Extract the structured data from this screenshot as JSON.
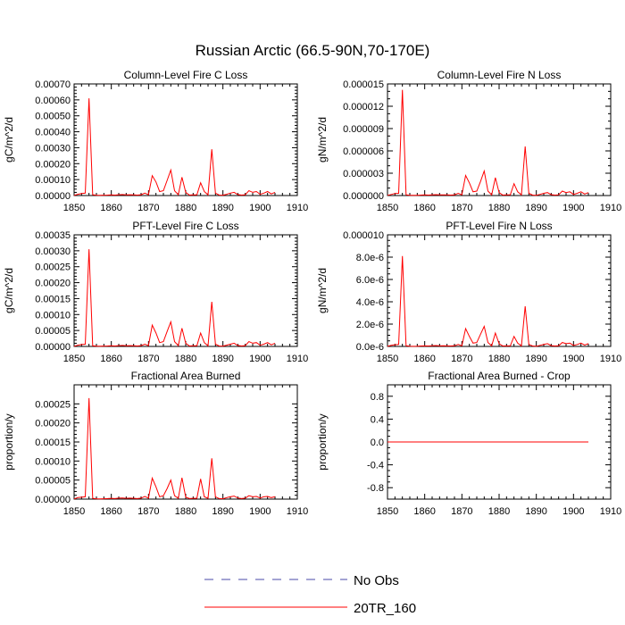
{
  "figure": {
    "title": "Russian Arctic (66.5-90N,70-170E)"
  },
  "colors": {
    "obs": "#4a4aa8",
    "model": "#ff0000",
    "axis": "#000000"
  },
  "legend": {
    "position": "bottom-center",
    "entries": [
      {
        "label": "No Obs",
        "style": "dashed",
        "color": "#4a4aa8"
      },
      {
        "label": "20TR_160",
        "style": "solid",
        "color": "#ff0000"
      }
    ]
  },
  "chart_data": [
    {
      "type": "line",
      "title": "Column-Level Fire C Loss",
      "ylabel": "gC/m^2/d",
      "xlabel": "",
      "xlim": [
        1850,
        1910
      ],
      "xticks": [
        1850,
        1860,
        1870,
        1880,
        1890,
        1900,
        1910
      ],
      "xtick_labels": [
        "1850",
        "1860",
        "1870",
        "1880",
        "1890",
        "1900",
        "1910"
      ],
      "ylim": [
        0,
        0.0007
      ],
      "yticks": [
        0,
        0.0001,
        0.0002,
        0.0003,
        0.0004,
        0.0005,
        0.0006,
        0.0007
      ],
      "ytick_labels": [
        "0.00000",
        "0.00010",
        "0.00020",
        "0.00030",
        "0.00040",
        "0.00050",
        "0.00060",
        "0.00070"
      ],
      "yminor": 5,
      "series": [
        {
          "name": "20TR_160",
          "x": [
            1850,
            1851,
            1852,
            1853,
            1854,
            1855,
            1856,
            1857,
            1858,
            1859,
            1860,
            1861,
            1862,
            1863,
            1864,
            1865,
            1866,
            1867,
            1868,
            1869,
            1870,
            1871,
            1872,
            1873,
            1874,
            1875,
            1876,
            1877,
            1878,
            1879,
            1880,
            1881,
            1882,
            1883,
            1884,
            1885,
            1886,
            1887,
            1888,
            1889,
            1890,
            1891,
            1892,
            1893,
            1894,
            1895,
            1896,
            1897,
            1898,
            1899,
            1900,
            1901,
            1902,
            1903,
            1904
          ],
          "values": [
            1e-06,
            8e-06,
            1.3e-05,
            1.5e-05,
            0.00061,
            5e-06,
            2e-06,
            1e-06,
            2e-06,
            3e-06,
            4e-06,
            3e-06,
            5e-06,
            6e-06,
            4e-06,
            5e-06,
            4e-06,
            3e-06,
            5e-06,
            1.5e-05,
            5e-06,
            0.000125,
            8.5e-05,
            2.5e-05,
            3e-05,
            9.5e-05,
            0.00016,
            3e-05,
            5e-06,
            0.000115,
            2e-05,
            3e-06,
            4e-06,
            4e-06,
            8e-05,
            2.5e-05,
            4e-06,
            0.00029,
            1.5e-05,
            3e-06,
            2e-06,
            8e-06,
            1.5e-05,
            2e-05,
            6e-06,
            3e-06,
            5e-06,
            3e-05,
            2e-05,
            2.5e-05,
            8e-06,
            1.5e-05,
            2.5e-05,
            1e-05,
            2e-05
          ]
        }
      ]
    },
    {
      "type": "line",
      "title": "Column-Level Fire N Loss",
      "ylabel": "gN/m^2/d",
      "xlabel": "",
      "xlim": [
        1850,
        1910
      ],
      "xticks": [
        1850,
        1860,
        1870,
        1880,
        1890,
        1900,
        1910
      ],
      "xtick_labels": [
        "1850",
        "1860",
        "1870",
        "1880",
        "1890",
        "1900",
        "1910"
      ],
      "ylim": [
        0,
        1.5e-05
      ],
      "yticks": [
        0,
        3e-06,
        6e-06,
        9e-06,
        1.2e-05,
        1.5e-05
      ],
      "ytick_labels": [
        "0.000000",
        "0.000003",
        "0.000006",
        "0.000009",
        "0.000012",
        "0.000015"
      ],
      "yminor": 3,
      "series": [
        {
          "name": "20TR_160",
          "x": [
            1850,
            1851,
            1852,
            1853,
            1854,
            1855,
            1856,
            1857,
            1858,
            1859,
            1860,
            1861,
            1862,
            1863,
            1864,
            1865,
            1866,
            1867,
            1868,
            1869,
            1870,
            1871,
            1872,
            1873,
            1874,
            1875,
            1876,
            1877,
            1878,
            1879,
            1880,
            1881,
            1882,
            1883,
            1884,
            1885,
            1886,
            1887,
            1888,
            1889,
            1890,
            1891,
            1892,
            1893,
            1894,
            1895,
            1896,
            1897,
            1898,
            1899,
            1900,
            1901,
            1902,
            1903,
            1904
          ],
          "values": [
            2e-08,
            1.5e-07,
            2.8e-07,
            3e-07,
            1.42e-05,
            1e-07,
            4e-08,
            2e-08,
            4e-08,
            6e-08,
            8e-08,
            6e-08,
            1e-07,
            1.2e-07,
            8e-08,
            1e-07,
            8e-08,
            6e-08,
            1e-07,
            3e-07,
            1e-07,
            2.7e-06,
            1.7e-06,
            5e-07,
            6e-07,
            1.9e-06,
            3.3e-06,
            6e-07,
            1e-07,
            2.4e-06,
            4e-07,
            6e-08,
            8e-08,
            8e-08,
            1.6e-06,
            5e-07,
            8e-08,
            6.6e-06,
            3e-07,
            6e-08,
            4e-08,
            1.6e-07,
            3e-07,
            4e-07,
            1.2e-07,
            6e-08,
            1e-07,
            6e-07,
            4e-07,
            5e-07,
            1.6e-07,
            3e-07,
            5e-07,
            2e-07,
            4e-07
          ]
        }
      ]
    },
    {
      "type": "line",
      "title": "PFT-Level Fire C Loss",
      "ylabel": "gC/m^2/d",
      "xlabel": "",
      "xlim": [
        1850,
        1910
      ],
      "xticks": [
        1850,
        1860,
        1870,
        1880,
        1890,
        1900,
        1910
      ],
      "xtick_labels": [
        "1850",
        "1860",
        "1870",
        "1880",
        "1890",
        "1900",
        "1910"
      ],
      "ylim": [
        0,
        0.00035
      ],
      "yticks": [
        0,
        5e-05,
        0.0001,
        0.00015,
        0.0002,
        0.00025,
        0.0003,
        0.00035
      ],
      "ytick_labels": [
        "0.00000",
        "0.00005",
        "0.00010",
        "0.00015",
        "0.00020",
        "0.00025",
        "0.00030",
        "0.00035"
      ],
      "yminor": 5,
      "series": [
        {
          "name": "20TR_160",
          "x": [
            1850,
            1851,
            1852,
            1853,
            1854,
            1855,
            1856,
            1857,
            1858,
            1859,
            1860,
            1861,
            1862,
            1863,
            1864,
            1865,
            1866,
            1867,
            1868,
            1869,
            1870,
            1871,
            1872,
            1873,
            1874,
            1875,
            1876,
            1877,
            1878,
            1879,
            1880,
            1881,
            1882,
            1883,
            1884,
            1885,
            1886,
            1887,
            1888,
            1889,
            1890,
            1891,
            1892,
            1893,
            1894,
            1895,
            1896,
            1897,
            1898,
            1899,
            1900,
            1901,
            1902,
            1903,
            1904
          ],
          "values": [
            5e-07,
            4e-06,
            6e-06,
            7e-06,
            0.000305,
            2e-06,
            1e-06,
            5e-07,
            1e-06,
            1.5e-06,
            2e-06,
            1.5e-06,
            2.5e-06,
            3e-06,
            2e-06,
            2.5e-06,
            2e-06,
            1.5e-06,
            2.5e-06,
            7e-06,
            2.5e-06,
            6.7e-05,
            4.2e-05,
            1.2e-05,
            1.5e-05,
            4.7e-05,
            7.7e-05,
            1.5e-05,
            2.5e-06,
            5.7e-05,
            1e-05,
            1.5e-06,
            2e-06,
            2e-06,
            4.2e-05,
            1.2e-05,
            2e-06,
            0.00014,
            7e-06,
            1.5e-06,
            1e-06,
            4e-06,
            7e-06,
            1e-05,
            3e-06,
            1.5e-06,
            2.5e-06,
            1.5e-05,
            1e-05,
            1.2e-05,
            4e-06,
            7e-06,
            1.2e-05,
            5e-06,
            1e-05
          ]
        }
      ]
    },
    {
      "type": "line",
      "title": "PFT-Level Fire N Loss",
      "ylabel": "gN/m^2/d",
      "xlabel": "",
      "xlim": [
        1850,
        1910
      ],
      "xticks": [
        1850,
        1860,
        1870,
        1880,
        1890,
        1900,
        1910
      ],
      "xtick_labels": [
        "1850",
        "1860",
        "1870",
        "1880",
        "1890",
        "1900",
        "1910"
      ],
      "ylim": [
        0,
        1e-05
      ],
      "yticks": [
        0,
        2e-06,
        4e-06,
        6e-06,
        8e-06,
        1e-05
      ],
      "ytick_labels": [
        "0.0e-6",
        "2.0e-6",
        "4.0e-6",
        "6.0e-6",
        "8.0e-6",
        "0.000010"
      ],
      "yminor": 4,
      "series": [
        {
          "name": "20TR_160",
          "x": [
            1850,
            1851,
            1852,
            1853,
            1854,
            1855,
            1856,
            1857,
            1858,
            1859,
            1860,
            1861,
            1862,
            1863,
            1864,
            1865,
            1866,
            1867,
            1868,
            1869,
            1870,
            1871,
            1872,
            1873,
            1874,
            1875,
            1876,
            1877,
            1878,
            1879,
            1880,
            1881,
            1882,
            1883,
            1884,
            1885,
            1886,
            1887,
            1888,
            1889,
            1890,
            1891,
            1892,
            1893,
            1894,
            1895,
            1896,
            1897,
            1898,
            1899,
            1900,
            1901,
            1902,
            1903,
            1904
          ],
          "values": [
            1e-08,
            1e-07,
            1.5e-07,
            1.8e-07,
            8.1e-06,
            6e-08,
            2e-08,
            1e-08,
            2e-08,
            4e-08,
            5e-08,
            4e-08,
            6e-08,
            8e-08,
            5e-08,
            6e-08,
            5e-08,
            4e-08,
            6e-08,
            1.8e-07,
            6e-08,
            1.6e-06,
            9e-07,
            3e-07,
            3.5e-07,
            1.1e-06,
            1.8e-06,
            3.5e-07,
            6e-08,
            1.2e-06,
            2.5e-07,
            4e-08,
            5e-08,
            5e-08,
            9e-07,
            3e-07,
            5e-08,
            3.6e-06,
            1.8e-07,
            4e-08,
            2e-08,
            1e-07,
            1.8e-07,
            2.5e-07,
            7e-08,
            4e-08,
            6e-08,
            3.5e-07,
            2.5e-07,
            3e-07,
            1e-07,
            1.8e-07,
            3e-07,
            1.2e-07,
            2.5e-07
          ]
        }
      ]
    },
    {
      "type": "line",
      "title": "Fractional Area Burned",
      "ylabel": "proportion/y",
      "xlabel": "",
      "xlim": [
        1850,
        1910
      ],
      "xticks": [
        1850,
        1860,
        1870,
        1880,
        1890,
        1900,
        1910
      ],
      "xtick_labels": [
        "1850",
        "1860",
        "1870",
        "1880",
        "1890",
        "1900",
        "1910"
      ],
      "ylim": [
        0,
        0.0003
      ],
      "yticks": [
        0,
        5e-05,
        0.0001,
        0.00015,
        0.0002,
        0.00025
      ],
      "ytick_labels": [
        "0.00000",
        "0.00005",
        "0.00010",
        "0.00015",
        "0.00020",
        "0.00025"
      ],
      "yminor": 5,
      "series": [
        {
          "name": "20TR_160",
          "x": [
            1850,
            1851,
            1852,
            1853,
            1854,
            1855,
            1856,
            1857,
            1858,
            1859,
            1860,
            1861,
            1862,
            1863,
            1864,
            1865,
            1866,
            1867,
            1868,
            1869,
            1870,
            1871,
            1872,
            1873,
            1874,
            1875,
            1876,
            1877,
            1878,
            1879,
            1880,
            1881,
            1882,
            1883,
            1884,
            1885,
            1886,
            1887,
            1888,
            1889,
            1890,
            1891,
            1892,
            1893,
            1894,
            1895,
            1896,
            1897,
            1898,
            1899,
            1900,
            1901,
            1902,
            1903,
            1904
          ],
          "values": [
            5e-07,
            4e-06,
            5e-06,
            6e-06,
            0.000265,
            2e-06,
            1e-06,
            5e-07,
            1e-06,
            1.5e-06,
            2e-06,
            1.5e-06,
            2.5e-06,
            3e-06,
            2e-06,
            2.5e-06,
            2e-06,
            1.5e-06,
            2.5e-06,
            7e-06,
            2.5e-06,
            5.5e-05,
            3.2e-05,
            6e-06,
            9e-06,
            2.8e-05,
            5e-05,
            9e-06,
            2e-06,
            5.6e-05,
            5e-06,
            1.5e-06,
            2e-06,
            2e-06,
            5.3e-05,
            6e-06,
            2e-06,
            0.000107,
            6e-06,
            1.5e-06,
            1e-06,
            4e-06,
            6e-06,
            8e-06,
            3e-06,
            1.5e-06,
            2.5e-06,
            9e-06,
            6e-06,
            7e-06,
            3e-06,
            6e-06,
            7e-06,
            4e-06,
            6e-06
          ]
        }
      ]
    },
    {
      "type": "line",
      "title": "Fractional Area Burned - Crop",
      "ylabel": "proportion/y",
      "xlabel": "",
      "xlim": [
        1850,
        1910
      ],
      "xticks": [
        1850,
        1860,
        1870,
        1880,
        1890,
        1900,
        1910
      ],
      "xtick_labels": [
        "1850",
        "1860",
        "1870",
        "1880",
        "1890",
        "1900",
        "1910"
      ],
      "ylim": [
        -1,
        1
      ],
      "yticks": [
        -0.8,
        -0.4,
        0,
        0.4,
        0.8
      ],
      "ytick_labels": [
        "-0.8",
        "-0.4",
        "0.0",
        "0.4",
        "0.8"
      ],
      "yminor": 4,
      "series": [
        {
          "name": "20TR_160",
          "x": [
            1850,
            1904
          ],
          "values": [
            0,
            0
          ]
        }
      ]
    }
  ]
}
